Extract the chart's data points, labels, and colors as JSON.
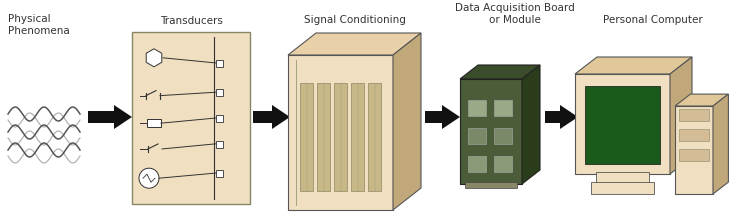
{
  "bg_color": "#ffffff",
  "box_fill": "#f0dfc0",
  "box_edge": "#555555",
  "arrow_color": "#111111",
  "text_color": "#333333",
  "labels": [
    "Physical\nPhenomena",
    "Transducers",
    "Signal Conditioning",
    "Data Acquisition Board\nor Module",
    "Personal Computer"
  ],
  "fig_width": 7.5,
  "fig_height": 2.22,
  "dpi": 100,
  "wave_color": "#555555",
  "dark_face": "#d4bc96",
  "darker_face": "#c0a87a",
  "screen_color": "#1a5a1a",
  "pcb_color": "#4a5c38"
}
